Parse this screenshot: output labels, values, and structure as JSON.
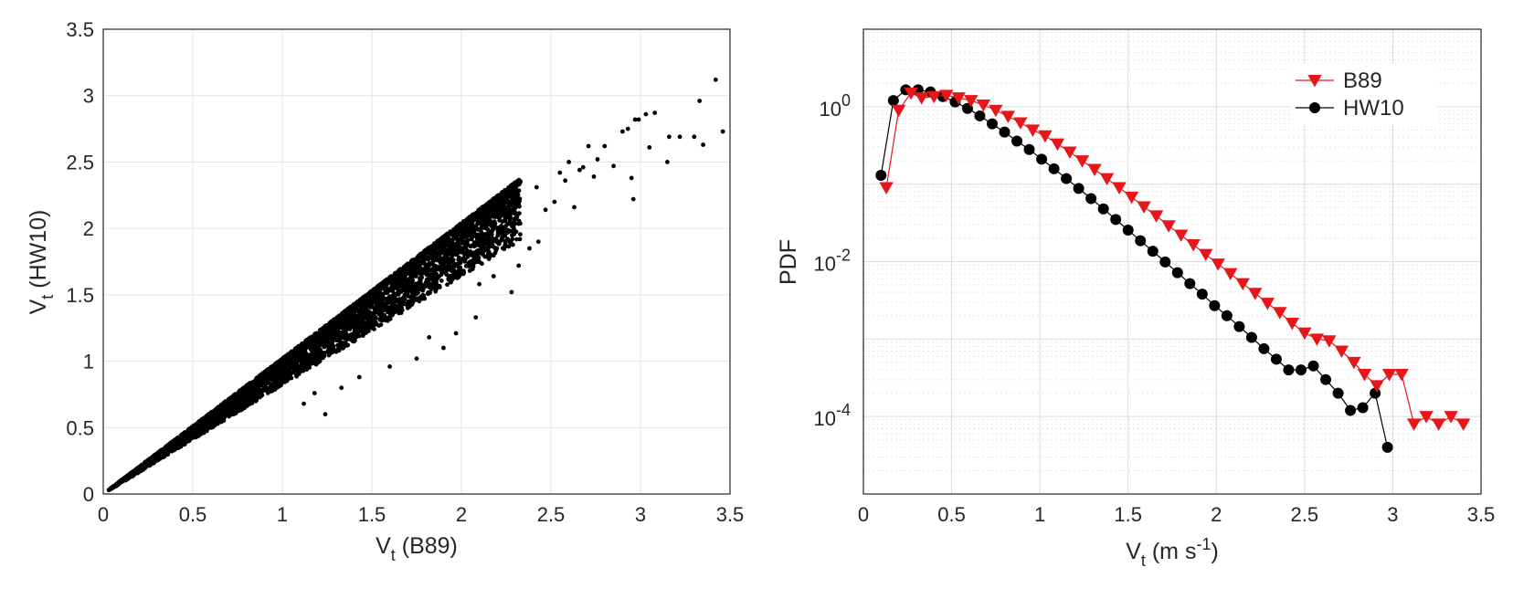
{
  "chart_data": [
    {
      "type": "scatter",
      "xlabel": {
        "base": "V",
        "sub": "t",
        "rest": " (B89)"
      },
      "ylabel": {
        "base": "V",
        "sub": "t",
        "rest": " (HW10)"
      },
      "xlim": [
        0,
        3.5
      ],
      "ylim": [
        0,
        3.5
      ],
      "xticks": [
        "0",
        "0.5",
        "1",
        "1.5",
        "2",
        "2.5",
        "3",
        "3.5"
      ],
      "yticks": [
        "0",
        "0.5",
        "1",
        "1.5",
        "2",
        "2.5",
        "3",
        "3.5"
      ],
      "grid": true,
      "marker_color": "#000000",
      "outlier_points": [
        [
          3.42,
          3.12
        ],
        [
          3.46,
          2.73
        ],
        [
          3.33,
          2.96
        ],
        [
          3.35,
          2.63
        ],
        [
          3.3,
          2.69
        ],
        [
          3.22,
          2.69
        ],
        [
          3.16,
          2.69
        ],
        [
          3.15,
          2.5
        ],
        [
          3.08,
          2.87
        ],
        [
          3.03,
          2.86
        ],
        [
          2.99,
          2.82
        ],
        [
          2.97,
          2.82
        ],
        [
          2.95,
          2.38
        ],
        [
          3.05,
          2.61
        ],
        [
          2.93,
          2.75
        ],
        [
          2.96,
          2.22
        ],
        [
          2.8,
          2.62
        ],
        [
          2.76,
          2.52
        ],
        [
          2.74,
          2.39
        ],
        [
          2.71,
          2.62
        ],
        [
          2.66,
          2.44
        ],
        [
          2.6,
          2.5
        ],
        [
          2.58,
          2.36
        ],
        [
          2.63,
          2.16
        ],
        [
          2.52,
          2.2
        ],
        [
          2.47,
          2.14
        ],
        [
          2.43,
          1.9
        ],
        [
          2.38,
          1.85
        ],
        [
          2.32,
          1.72
        ],
        [
          2.28,
          1.52
        ],
        [
          2.08,
          1.33
        ],
        [
          1.97,
          1.21
        ],
        [
          1.82,
          1.18
        ],
        [
          1.75,
          1.02
        ],
        [
          1.6,
          0.96
        ],
        [
          1.43,
          0.88
        ],
        [
          1.33,
          0.8
        ],
        [
          1.24,
          0.6
        ],
        [
          1.18,
          0.76
        ],
        [
          1.12,
          0.68
        ],
        [
          2.18,
          1.64
        ],
        [
          2.42,
          2.31
        ],
        [
          2.55,
          2.42
        ],
        [
          2.68,
          2.46
        ],
        [
          2.85,
          2.47
        ],
        [
          2.9,
          2.73
        ],
        [
          2.1,
          1.58
        ],
        [
          1.9,
          1.1
        ]
      ]
    },
    {
      "type": "line",
      "xlabel": {
        "base": "V",
        "sub": "t",
        "rest": " (m s",
        "sup": "-1",
        "end": ")"
      },
      "ylabel": "PDF",
      "xlim": [
        0,
        3.5
      ],
      "ylim": [
        1e-05,
        10
      ],
      "yscale": "log",
      "xticks": [
        "0",
        "0.5",
        "1",
        "1.5",
        "2",
        "2.5",
        "3",
        "3.5"
      ],
      "yticks": [
        {
          "base": "10",
          "exp": "0",
          "value": 1
        },
        {
          "base": "10",
          "exp": "-2",
          "value": 0.01
        },
        {
          "base": "10",
          "exp": "-4",
          "value": 0.0001
        }
      ],
      "grid": true,
      "legend": "top-right",
      "series": [
        {
          "name": "B89",
          "color": "#e8161b",
          "marker": "triangle-down",
          "x": [
            0.13,
            0.2,
            0.27,
            0.33,
            0.4,
            0.47,
            0.54,
            0.61,
            0.68,
            0.75,
            0.82,
            0.89,
            0.96,
            1.03,
            1.1,
            1.17,
            1.24,
            1.31,
            1.38,
            1.45,
            1.52,
            1.59,
            1.66,
            1.73,
            1.8,
            1.87,
            1.94,
            2.01,
            2.08,
            2.15,
            2.22,
            2.29,
            2.36,
            2.43,
            2.5,
            2.57,
            2.64,
            2.71,
            2.78,
            2.84,
            2.91,
            2.98,
            3.05,
            3.12,
            3.19,
            3.26,
            3.33,
            3.4,
            3.47
          ],
          "y": [
            0.09,
            0.9,
            1.5,
            1.3,
            1.35,
            1.4,
            1.3,
            1.2,
            1.05,
            0.9,
            0.75,
            0.62,
            0.5,
            0.42,
            0.33,
            0.26,
            0.2,
            0.155,
            0.118,
            0.09,
            0.068,
            0.051,
            0.039,
            0.029,
            0.022,
            0.0165,
            0.0124,
            0.0093,
            0.007,
            0.0052,
            0.0039,
            0.0029,
            0.0022,
            0.0016,
            0.0012,
            0.001,
            0.00095,
            0.0007,
            0.0005,
            0.00035,
            0.00025,
            0.00035,
            0.00035,
            8e-05,
            0.0001,
            8e-05,
            0.0001,
            8e-05,
            0
          ]
        },
        {
          "name": "HW10",
          "color": "#000000",
          "marker": "circle",
          "x": [
            0.1,
            0.17,
            0.24,
            0.31,
            0.38,
            0.45,
            0.52,
            0.59,
            0.66,
            0.73,
            0.8,
            0.87,
            0.94,
            1.01,
            1.08,
            1.15,
            1.22,
            1.29,
            1.36,
            1.43,
            1.5,
            1.57,
            1.64,
            1.71,
            1.78,
            1.85,
            1.92,
            1.99,
            2.06,
            2.13,
            2.2,
            2.27,
            2.34,
            2.41,
            2.48,
            2.55,
            2.62,
            2.69,
            2.76,
            2.83,
            2.9,
            2.97
          ],
          "y": [
            0.13,
            1.2,
            1.65,
            1.65,
            1.55,
            1.35,
            1.15,
            0.95,
            0.76,
            0.6,
            0.47,
            0.36,
            0.28,
            0.21,
            0.158,
            0.118,
            0.088,
            0.065,
            0.048,
            0.035,
            0.0255,
            0.0186,
            0.0136,
            0.0099,
            0.0072,
            0.0052,
            0.0038,
            0.0027,
            0.002,
            0.00145,
            0.00105,
            0.00075,
            0.00055,
            0.0004,
            0.0004,
            0.00045,
            0.0003,
            0.0002,
            0.00012,
            0.00013,
            0.0002,
            4e-05
          ]
        }
      ]
    }
  ]
}
